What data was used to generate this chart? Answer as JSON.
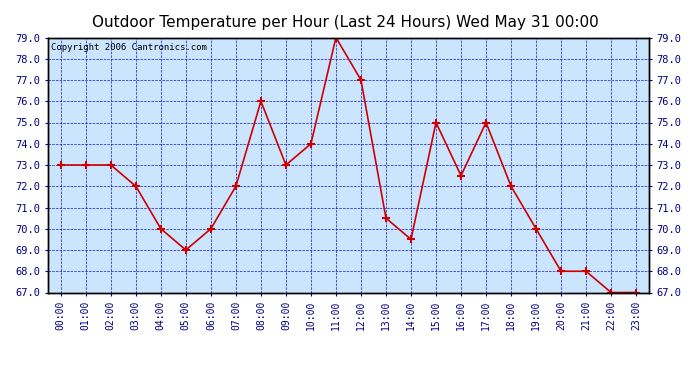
{
  "title": "Outdoor Temperature per Hour (Last 24 Hours) Wed May 31 00:00",
  "copyright": "Copyright 2006 Cantronics.com",
  "hours": [
    "00:00",
    "01:00",
    "02:00",
    "03:00",
    "04:00",
    "05:00",
    "06:00",
    "07:00",
    "08:00",
    "09:00",
    "10:00",
    "11:00",
    "12:00",
    "13:00",
    "14:00",
    "15:00",
    "16:00",
    "17:00",
    "18:00",
    "19:00",
    "20:00",
    "21:00",
    "22:00",
    "23:00"
  ],
  "temperatures": [
    73.0,
    73.0,
    73.0,
    72.0,
    70.0,
    69.0,
    70.0,
    72.0,
    76.0,
    73.0,
    74.0,
    79.0,
    77.0,
    70.5,
    69.5,
    75.0,
    72.5,
    75.0,
    72.0,
    70.0,
    68.0,
    68.0,
    67.0,
    67.0
  ],
  "ylim": [
    67.0,
    79.0
  ],
  "yticks": [
    67.0,
    68.0,
    69.0,
    70.0,
    71.0,
    72.0,
    73.0,
    74.0,
    75.0,
    76.0,
    77.0,
    78.0,
    79.0
  ],
  "line_color": "#cc0000",
  "marker": "+",
  "bg_color": "#cce5ff",
  "fig_bg_color": "#ffffff",
  "grid_color": "#0000cc",
  "title_color": "#000000",
  "copyright_color": "#000000",
  "title_fontsize": 11,
  "copyright_fontsize": 6.5,
  "tick_label_color": "#000080",
  "border_color": "#000000",
  "tick_label_fontsize": 7.5,
  "xlabel_fontsize": 7
}
